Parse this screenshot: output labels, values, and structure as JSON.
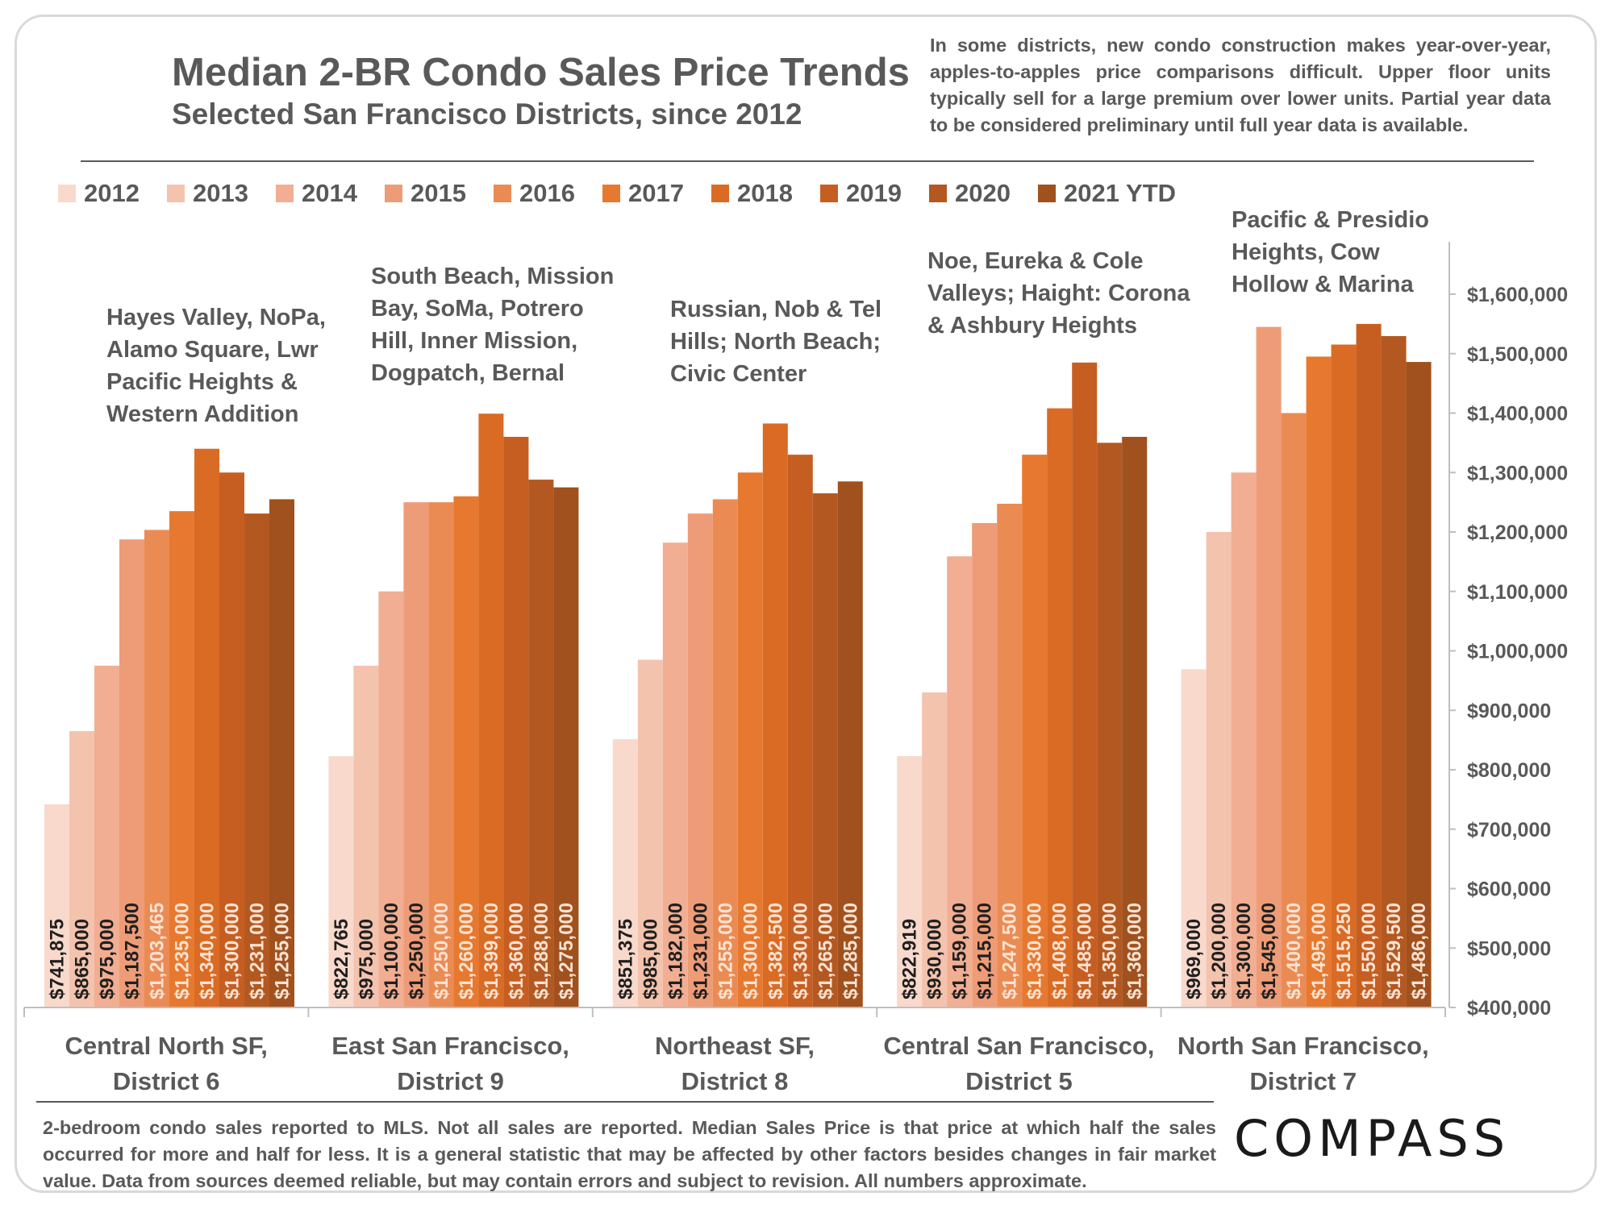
{
  "header": {
    "title": "Median 2-BR Condo Sales Price Trends",
    "subtitle": "Selected San Francisco Districts, since 2012",
    "note": "In some districts, new condo construction makes year-over-year, apples-to-apples price comparisons difficult. Upper floor units typically sell for a large premium over lower units. Partial year data to be considered preliminary until full year data is available."
  },
  "footer": {
    "text": "2-bedroom condo sales reported to MLS. Not all sales are reported. Median Sales Price is that price at which half the sales occurred for more and half for less. It is a general statistic that may be affected by other factors besides changes in fair market value. Data from sources deemed reliable, but may contain errors and subject to revision.  All numbers approximate.",
    "logo": "COMPASS"
  },
  "colors": [
    "#f8d9cc",
    "#f4c3ad",
    "#f1ae92",
    "#ee9c77",
    "#eb8b54",
    "#e6792f",
    "#d96b24",
    "#c65e22",
    "#b35820",
    "#a0511e"
  ],
  "chart_data": {
    "type": "bar",
    "series_names": [
      "2012",
      "2013",
      "2014",
      "2015",
      "2016",
      "2017",
      "2018",
      "2019",
      "2020",
      "2021 YTD"
    ],
    "groups": [
      {
        "category": [
          "Central North SF,",
          "District 6"
        ],
        "neighborhoods": [
          "Hayes Valley, NoPa,",
          "Alamo Square, Lwr",
          "Pacific Heights &",
          "Western Addition"
        ],
        "values": [
          741875,
          865000,
          975000,
          1187500,
          1203465,
          1235000,
          1340000,
          1300000,
          1231000,
          1255000
        ],
        "labels": [
          "$741,875",
          "$865,000",
          "$975,000",
          "$1,187,500",
          "$1,203,465",
          "$1,235,000",
          "$1,340,000",
          "$1,300,000",
          "$1,231,000",
          "$1,255,000"
        ]
      },
      {
        "category": [
          "East San Francisco,",
          "District 9"
        ],
        "neighborhoods": [
          "South Beach, Mission",
          "Bay, SoMa, Potrero",
          "Hill, Inner Mission,",
          "Dogpatch, Bernal"
        ],
        "values": [
          822765,
          975000,
          1100000,
          1250000,
          1250000,
          1260000,
          1399000,
          1360000,
          1288000,
          1275000
        ],
        "labels": [
          "$822,765",
          "$975,000",
          "$1,100,000",
          "$1,250,000",
          "$1,250,000",
          "$1,260,000",
          "$1,399,000",
          "$1,360,000",
          "$1,288,000",
          "$1,275,000"
        ]
      },
      {
        "category": [
          "Northeast SF,",
          "District 8"
        ],
        "neighborhoods": [
          "Russian, Nob & Tel",
          "Hills; North Beach;",
          "Civic Center"
        ],
        "values": [
          851375,
          985000,
          1182000,
          1231000,
          1255000,
          1300000,
          1382500,
          1330000,
          1265000,
          1285000
        ],
        "labels": [
          "$851,375",
          "$985,000",
          "$1,182,000",
          "$1,231,000",
          "$1,255,000",
          "$1,300,000",
          "$1,382,500",
          "$1,330,000",
          "$1,265,000",
          "$1,285,000"
        ]
      },
      {
        "category": [
          "Central San Francisco,",
          "District 5"
        ],
        "neighborhoods": [
          "Noe, Eureka & Cole",
          "Valleys; Haight: Corona",
          "& Ashbury Heights"
        ],
        "values": [
          822919,
          930000,
          1159000,
          1215000,
          1247500,
          1330000,
          1408000,
          1485000,
          1350000,
          1360000
        ],
        "labels": [
          "$822,919",
          "$930,000",
          "$1,159,000",
          "$1,215,000",
          "$1,247,500",
          "$1,330,000",
          "$1,408,000",
          "$1,485,000",
          "$1,350,000",
          "$1,360,000"
        ]
      },
      {
        "category": [
          "North San Francisco,",
          "District 7"
        ],
        "neighborhoods": [
          "Pacific & Presidio",
          "Heights, Cow",
          "Hollow & Marina"
        ],
        "values": [
          969000,
          1200000,
          1300000,
          1545000,
          1400000,
          1495000,
          1515250,
          1550000,
          1529500,
          1486000
        ],
        "labels": [
          "$969,000",
          "$1,200,000",
          "$1,300,000",
          "$1,545,000",
          "$1,400,000",
          "$1,495,000",
          "$1,515,250",
          "$1,550,000",
          "$1,529,500",
          "$1,486,000"
        ]
      }
    ],
    "ylim": [
      400000,
      1600000
    ],
    "yticks": [
      400000,
      500000,
      600000,
      700000,
      800000,
      900000,
      1000000,
      1100000,
      1200000,
      1300000,
      1400000,
      1500000,
      1600000
    ],
    "ytick_labels": [
      "$400,000",
      "$500,000",
      "$600,000",
      "$700,000",
      "$800,000",
      "$900,000",
      "$1,000,000",
      "$1,100,000",
      "$1,200,000",
      "$1,300,000",
      "$1,400,000",
      "$1,500,000",
      "$1,600,000"
    ],
    "yaxis_side": "right",
    "grid": false,
    "legend_position": "top"
  }
}
